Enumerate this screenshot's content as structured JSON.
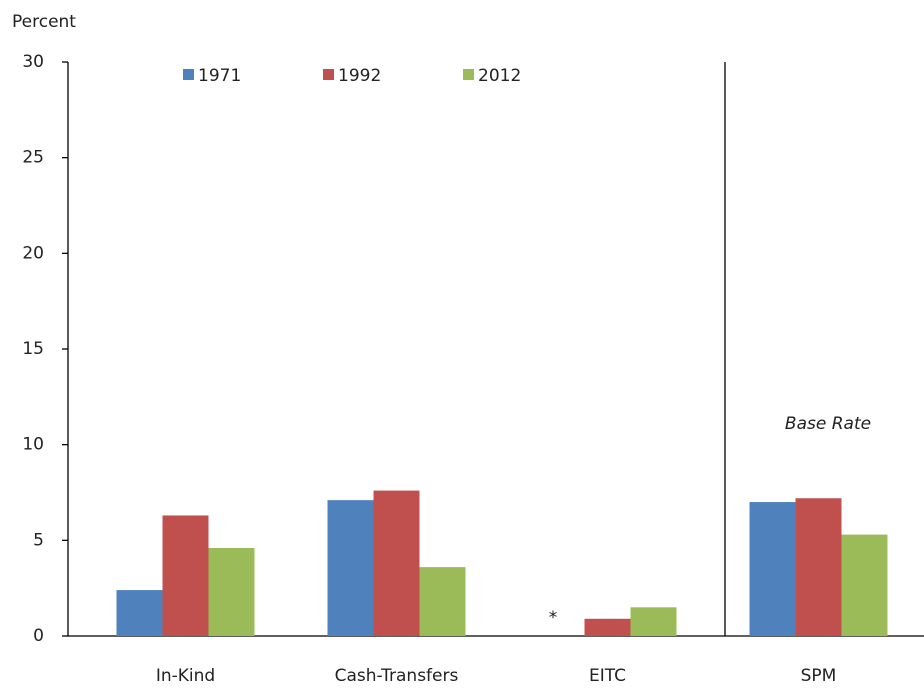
{
  "chart_data": {
    "type": "bar",
    "ylabel": "Percent",
    "categories": [
      "In-Kind",
      "Cash-Transfers",
      "EITC",
      "SPM"
    ],
    "series": [
      {
        "name": "1971",
        "color": "#4f81bd",
        "values": [
          2.4,
          7.1,
          null,
          7.0
        ]
      },
      {
        "name": "1992",
        "color": "#c0504d",
        "values": [
          6.3,
          7.6,
          0.9,
          7.2
        ]
      },
      {
        "name": "2012",
        "color": "#9bbb59",
        "values": [
          4.6,
          3.6,
          1.5,
          5.3
        ]
      }
    ],
    "annotations": [
      "*",
      "Base Rate"
    ],
    "ylim": [
      0,
      30
    ],
    "yticks": [
      0,
      5,
      10,
      15,
      20,
      25,
      30
    ],
    "grid": false,
    "legend": "top"
  }
}
